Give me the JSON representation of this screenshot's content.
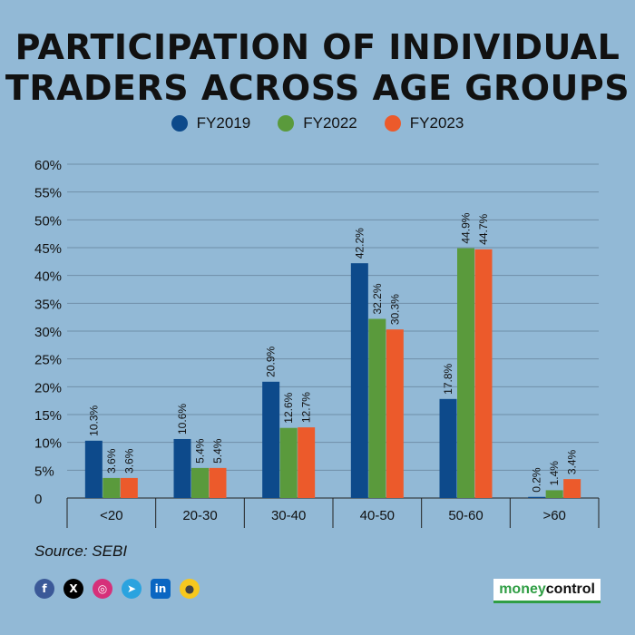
{
  "title_lines": [
    "PARTICIPATION OF INDIVIDUAL",
    "TRADERS ACROSS AGE GROUPS"
  ],
  "legend": [
    {
      "label": "FY2019",
      "color": "#0d4a8b"
    },
    {
      "label": "FY2022",
      "color": "#5a9a3c"
    },
    {
      "label": "FY2023",
      "color": "#ec5a2b"
    }
  ],
  "chart_data": {
    "type": "bar",
    "categories": [
      "<20",
      "20-30",
      "30-40",
      "40-50",
      "50-60",
      ">60"
    ],
    "series": [
      {
        "name": "FY2019",
        "values": [
          10.3,
          10.6,
          20.9,
          42.2,
          17.8,
          0.2
        ],
        "labels": [
          "10.3%",
          "10.6%",
          "20.9%",
          "42.2%",
          "17.8%",
          "0.2%"
        ]
      },
      {
        "name": "FY2022",
        "values": [
          3.6,
          5.4,
          12.6,
          32.2,
          44.9,
          1.4
        ],
        "labels": [
          "3.6%",
          "5.4%",
          "12.6%",
          "32.2%",
          "44.9%",
          "1.4%"
        ]
      },
      {
        "name": "FY2023",
        "values": [
          3.6,
          5.4,
          12.7,
          30.3,
          44.7,
          3.4
        ],
        "labels": [
          "3.6%",
          "5.4%",
          "12.7%",
          "30.3%",
          "44.7%",
          "3.4%"
        ]
      }
    ],
    "yticks": [
      0,
      5,
      10,
      15,
      20,
      25,
      30,
      35,
      40,
      45,
      50,
      55,
      60
    ],
    "ytick_labels": [
      "0",
      "5%",
      "10%",
      "15%",
      "20%",
      "25%",
      "30%",
      "35%",
      "40%",
      "45%",
      "50%",
      "55%",
      "60%"
    ],
    "ylim": [
      0,
      60
    ],
    "grid": true,
    "legend_position": "top-center"
  },
  "source": "Source: SEBI",
  "brand": {
    "part1": "money",
    "part2": "control"
  },
  "socials": [
    {
      "name": "facebook-icon",
      "glyph": "f"
    },
    {
      "name": "x-icon",
      "glyph": "X"
    },
    {
      "name": "instagram-icon",
      "glyph": "◎"
    },
    {
      "name": "telegram-icon",
      "glyph": "➤"
    },
    {
      "name": "linkedin-icon",
      "glyph": "in"
    },
    {
      "name": "koo-icon",
      "glyph": "●"
    }
  ]
}
